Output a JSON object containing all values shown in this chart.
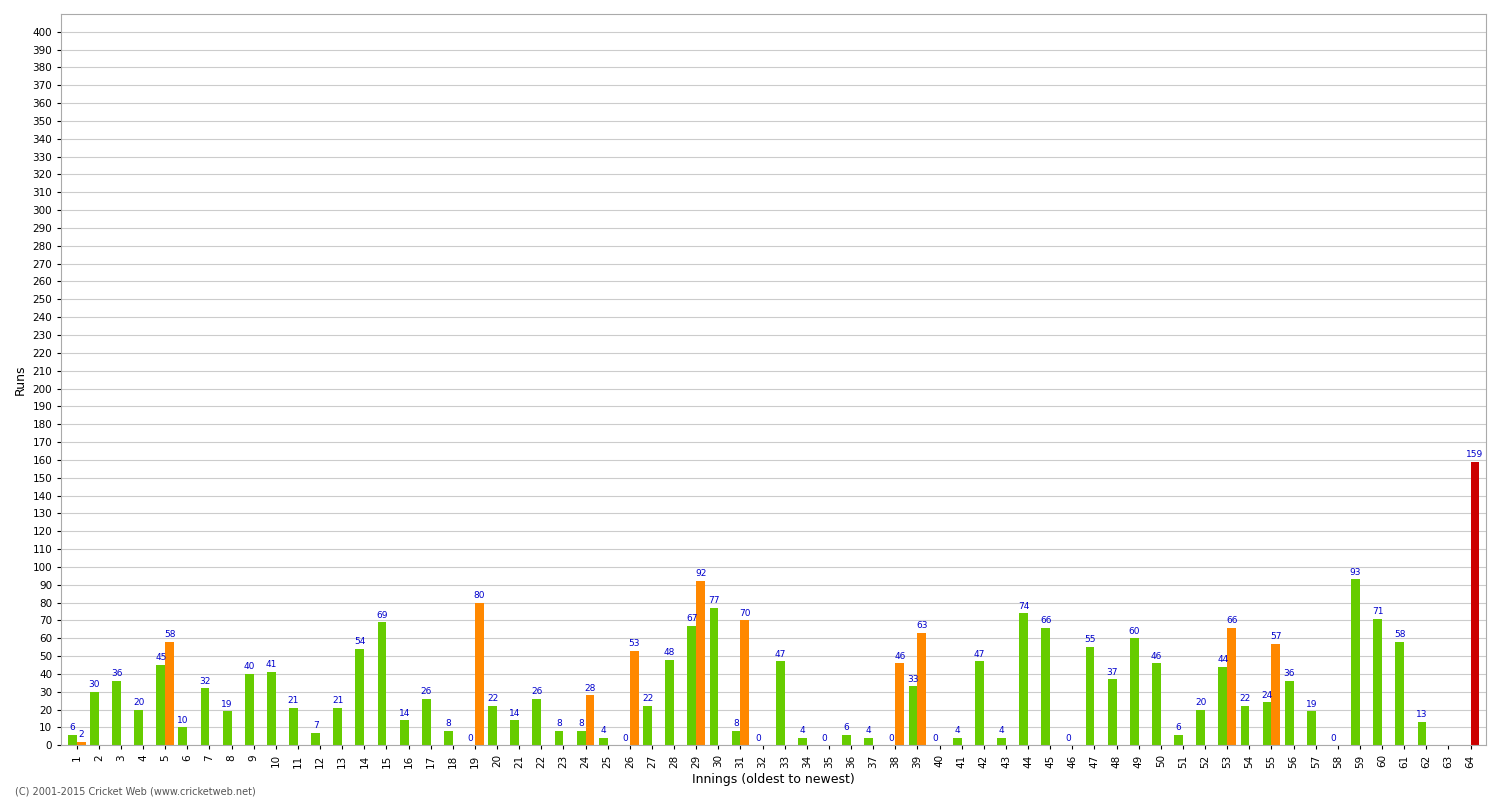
{
  "xlabel": "Innings (oldest to newest)",
  "ylabel": "Runs",
  "footer": "(C) 2001-2015 Cricket Web (www.cricketweb.net)",
  "ylim": [
    0,
    410
  ],
  "yticks": [
    0,
    10,
    20,
    30,
    40,
    50,
    60,
    70,
    80,
    90,
    100,
    110,
    120,
    130,
    140,
    150,
    160,
    170,
    180,
    190,
    200,
    210,
    220,
    230,
    240,
    250,
    260,
    270,
    280,
    290,
    300,
    310,
    320,
    330,
    340,
    350,
    360,
    370,
    380,
    390,
    400
  ],
  "innings": [
    1,
    2,
    3,
    4,
    5,
    6,
    7,
    8,
    9,
    10,
    11,
    12,
    13,
    14,
    15,
    16,
    17,
    18,
    19,
    20,
    21,
    22,
    23,
    24,
    25,
    26,
    27,
    28,
    29,
    30,
    31,
    32,
    33,
    34,
    35,
    36,
    37,
    38,
    39,
    40,
    41,
    42,
    43,
    44,
    45,
    46,
    47,
    48,
    49,
    50,
    51,
    52,
    53,
    54,
    55,
    56,
    57,
    58,
    59,
    60,
    61,
    62,
    63,
    64
  ],
  "green_values": [
    6,
    30,
    36,
    20,
    45,
    10,
    32,
    19,
    40,
    41,
    21,
    7,
    21,
    54,
    69,
    14,
    26,
    8,
    0,
    22,
    14,
    26,
    8,
    8,
    4,
    0,
    22,
    48,
    67,
    77,
    8,
    0,
    47,
    4,
    0,
    6,
    4,
    0,
    33,
    0,
    4,
    47,
    4,
    74,
    66,
    0,
    55,
    37,
    60,
    46,
    6,
    20,
    44,
    22,
    24,
    36,
    19,
    0,
    93,
    71,
    58,
    13,
    null,
    null
  ],
  "orange_values": [
    2,
    null,
    null,
    null,
    58,
    null,
    null,
    null,
    null,
    null,
    null,
    null,
    null,
    null,
    null,
    null,
    null,
    null,
    80,
    null,
    null,
    null,
    null,
    28,
    null,
    53,
    null,
    null,
    92,
    null,
    70,
    null,
    null,
    null,
    null,
    null,
    null,
    46,
    63,
    null,
    null,
    null,
    null,
    null,
    null,
    null,
    null,
    null,
    null,
    null,
    null,
    null,
    66,
    null,
    57,
    null,
    null,
    null,
    null,
    null,
    null,
    null,
    null,
    159
  ],
  "green_color": "#66cc00",
  "orange_color": "#ff8800",
  "red_color": "#cc0000",
  "label_color": "#0000cc",
  "background_color": "#ffffff",
  "grid_color": "#cccccc",
  "bar_width": 0.4,
  "label_fontsize": 6.5,
  "tick_fontsize": 7.5,
  "ylabel_fontsize": 9
}
